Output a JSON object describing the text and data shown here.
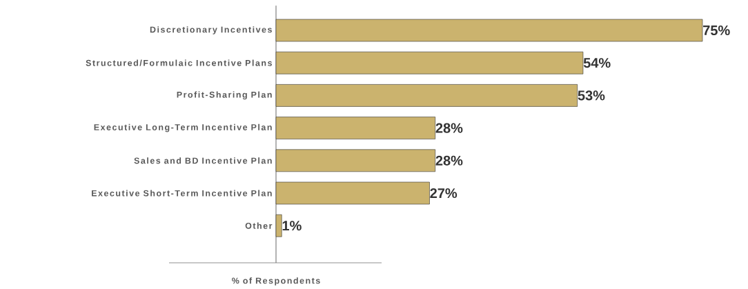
{
  "chart_data": {
    "type": "bar",
    "orientation": "horizontal",
    "categories": [
      "Discretionary Incentives",
      "Structured/Formulaic Incentive Plans",
      "Profit-Sharing Plan",
      "Executive Long-Term Incentive Plan",
      "Sales and BD Incentive Plan",
      "Executive Short-Term Incentive Plan",
      "Other"
    ],
    "values": [
      75,
      54,
      53,
      28,
      28,
      27,
      1
    ],
    "value_labels": [
      "75%",
      "54%",
      "53%",
      "28%",
      "28%",
      "27%",
      "1%"
    ],
    "color": "#cbb36e",
    "xlabel": "% of Respondents"
  }
}
